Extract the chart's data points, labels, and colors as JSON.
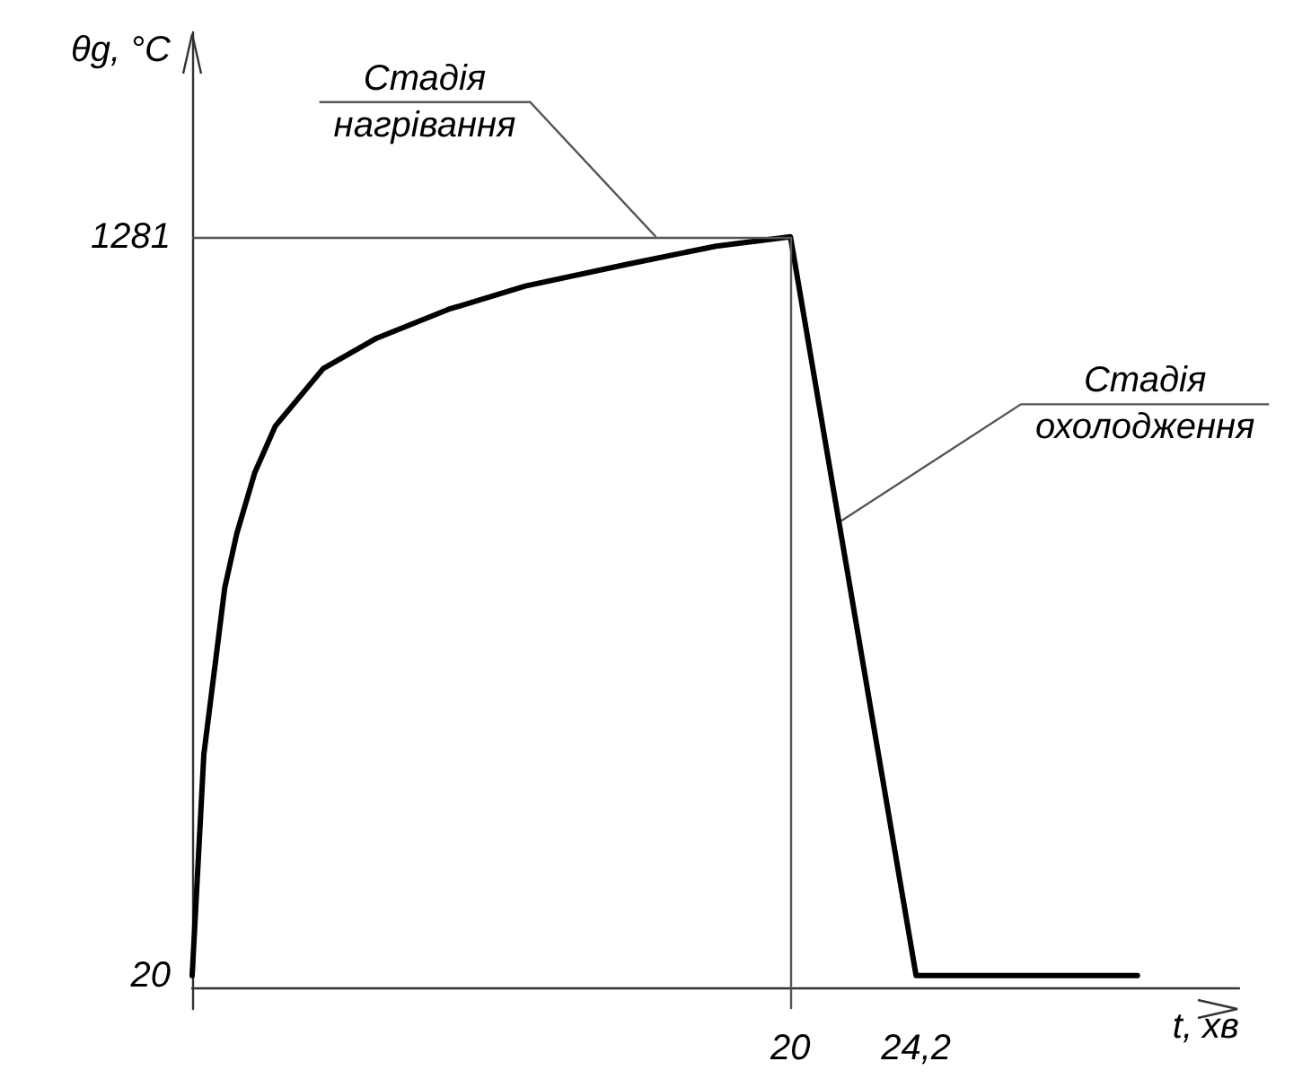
{
  "chart_data": {
    "type": "line",
    "xlabel": "t, хв",
    "ylabel": "θg, °C",
    "x": [
      0,
      0.39,
      0.79,
      1.09,
      1.49,
      2.09,
      2.78,
      4.38,
      6.17,
      8.56,
      11.14,
      14.53,
      17.51,
      20,
      24.2,
      31.6
    ],
    "series": [
      {
        "color": "#000000",
        "values": [
          20,
          397,
          560,
          682,
          774,
          878,
          958,
          1056,
          1108,
          1157,
          1197,
          1234,
          1265,
          1281,
          20,
          20
        ]
      }
    ],
    "xlim": [
      0,
      35
    ],
    "ylim": [
      -37,
      1630
    ],
    "xticks": [
      20,
      {
        "value": 24.2,
        "label": "24,2"
      }
    ],
    "yticks": [
      20,
      1281
    ],
    "ref_lines": [
      {
        "axis": "y",
        "value": 1281,
        "color": "#555555"
      },
      {
        "axis": "x",
        "value": 20,
        "color": "#555555"
      }
    ],
    "annotations": [
      {
        "text": "Стадія\nнагрівання",
        "x": 15.5,
        "y": 1281
      },
      {
        "text": "Стадія\nохолодження",
        "x": 21.7,
        "y": 796
      }
    ],
    "marker": "none",
    "line_style": "solid",
    "grid": false
  }
}
